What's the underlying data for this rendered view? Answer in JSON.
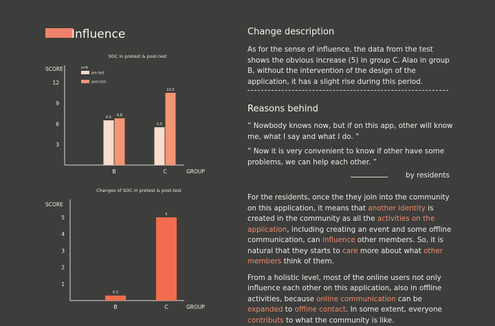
{
  "header": {
    "title": "Influence"
  },
  "change": {
    "heading": "Change description",
    "text": "As for the sense of influence, the data from the test shows the obvious increase (5) in group C. Alao in group B, without the intervention of the design of the application, it has a slight rise during this period."
  },
  "reasons": {
    "heading": "Reasons behind",
    "quote1_mark_open": "”",
    "quote1": "Nowbody knows now, but if on this app, other will know me, what I say and what I do.",
    "quote1_mark_close": "”",
    "quote2_mark_open": "”",
    "quote2": "Now it is very convenient to know if other have some problems, we can help each other.",
    "quote2_mark_close": "”",
    "byline": "by residents"
  },
  "body": {
    "p1_a": "For the residents, once the they join into the community on this application, it means that ",
    "p1_h1": "another identity",
    "p1_b": " is created in the community as all the ",
    "p1_h2": "activities on the application",
    "p1_c": ", including creating an event and some offline communication, can ",
    "p1_h3": "influence",
    "p1_d": " other members. So, it is natural that they starts to ",
    "p1_h4": "care",
    "p1_e": " more about what ",
    "p1_h5": "other members",
    "p1_f": " think of them.",
    "p2_a": "From a holistic level, most of the online users not only influence each other on this application, also in offline activities, because ",
    "p2_h1": "online communication",
    "p2_b": " can be ",
    "p2_h2": "expanded",
    "p2_c": " to ",
    "p2_h3": "offline contact",
    "p2_d": ". In some extent, everyone ",
    "p2_h4": "contributs",
    "p2_e": " to what the community is like."
  },
  "colors": {
    "accent": "#f0816c",
    "pre": "#f9dccb",
    "post": "#f49573",
    "change": "#f26d4f",
    "highlight": "#f08a6e"
  },
  "chart_data": [
    {
      "type": "bar",
      "title": "SOC in pretest & post-test",
      "ylabel": "SCORE",
      "xlabel": "GROUP",
      "legend_title": "n=6",
      "categories": [
        "B",
        "C"
      ],
      "series": [
        {
          "name": "pre-test",
          "values": [
            6.5,
            5.5
          ]
        },
        {
          "name": "post-test",
          "values": [
            6.8,
            10.5
          ]
        }
      ],
      "yticks": [
        3,
        6,
        9,
        12
      ],
      "ylim": [
        0,
        13
      ]
    },
    {
      "type": "bar",
      "title": "Changes of SOC in pretest & post-test",
      "ylabel": "SCORE",
      "xlabel": "GROUP",
      "categories": [
        "B",
        "C"
      ],
      "values": [
        0.3,
        5
      ],
      "yticks": [
        1,
        2,
        3,
        4,
        5
      ],
      "ylim": [
        0,
        5.8
      ]
    }
  ]
}
